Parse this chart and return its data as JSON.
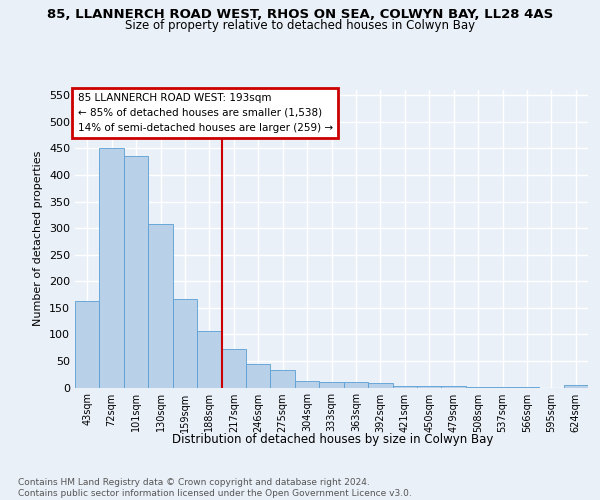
{
  "title1": "85, LLANNERCH ROAD WEST, RHOS ON SEA, COLWYN BAY, LL28 4AS",
  "title2": "Size of property relative to detached houses in Colwyn Bay",
  "xlabel": "Distribution of detached houses by size in Colwyn Bay",
  "ylabel": "Number of detached properties",
  "categories": [
    "43sqm",
    "72sqm",
    "101sqm",
    "130sqm",
    "159sqm",
    "188sqm",
    "217sqm",
    "246sqm",
    "275sqm",
    "304sqm",
    "333sqm",
    "363sqm",
    "392sqm",
    "421sqm",
    "450sqm",
    "479sqm",
    "508sqm",
    "537sqm",
    "566sqm",
    "595sqm",
    "624sqm"
  ],
  "values": [
    163,
    450,
    435,
    307,
    167,
    107,
    73,
    44,
    33,
    12,
    10,
    10,
    8,
    3,
    2,
    2,
    1,
    1,
    1,
    0,
    5
  ],
  "bar_color": "#b8d0e8",
  "bar_edge_color": "#5a9fd4",
  "vline_color": "#cc0000",
  "vline_pos": 5.5,
  "annotation_text": "85 LLANNERCH ROAD WEST: 193sqm\n← 85% of detached houses are smaller (1,538)\n14% of semi-detached houses are larger (259) →",
  "annotation_box_edgecolor": "#cc0000",
  "ylim_max": 560,
  "yticks": [
    0,
    50,
    100,
    150,
    200,
    250,
    300,
    350,
    400,
    450,
    500,
    550
  ],
  "footer": "Contains HM Land Registry data © Crown copyright and database right 2024.\nContains public sector information licensed under the Open Government Licence v3.0.",
  "bg_color": "#eaf0f8",
  "grid_color": "#ffffff"
}
